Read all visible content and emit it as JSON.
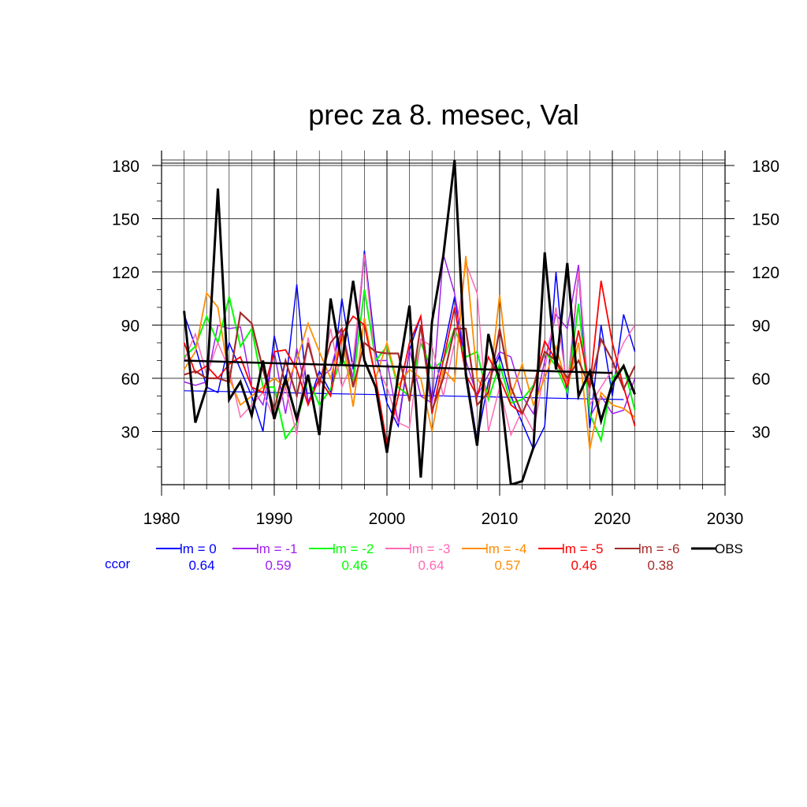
{
  "chart_data": {
    "type": "line",
    "title": "prec za 8. mesec, Val",
    "xlabel": "",
    "ylabel": "",
    "xlim": [
      1980,
      2030
    ],
    "ylim": [
      0,
      185
    ],
    "x_ticks": [
      1980,
      1990,
      2000,
      2010,
      2020,
      2030
    ],
    "x_tick_labels": [
      "1980",
      "1990",
      "2000",
      "2010",
      "2020",
      "2030"
    ],
    "y_ticks": [
      30,
      60,
      90,
      120,
      150,
      180
    ],
    "y_tick_labels": [
      "30",
      "60",
      "90",
      "120",
      "150",
      "180"
    ],
    "grid": true,
    "ccor_label": "ccor",
    "x": [
      1982,
      1983,
      1984,
      1985,
      1986,
      1987,
      1988,
      1989,
      1990,
      1991,
      1992,
      1993,
      1994,
      1995,
      1996,
      1997,
      1998,
      1999,
      2000,
      2001,
      2002,
      2003,
      2004,
      2005,
      2006,
      2007,
      2008,
      2009,
      2010,
      2011,
      2012,
      2013,
      2014,
      2015,
      2016,
      2017,
      2018,
      2019,
      2020,
      2021,
      2022
    ],
    "series": [
      {
        "name": "lm = 0",
        "color": "#0000ff",
        "ccor": "0.64",
        "width": 1.5,
        "values": [
          96,
          78,
          55,
          52,
          80,
          65,
          50,
          30,
          84,
          56,
          113,
          45,
          64,
          52,
          105,
          65,
          132,
          75,
          46,
          33,
          76,
          95,
          47,
          75,
          106,
          65,
          25,
          58,
          73,
          50,
          35,
          20,
          33,
          120,
          48,
          120,
          32,
          90,
          50,
          96,
          75
        ],
        "trend": [
          [
            1982,
            53
          ],
          [
            2021,
            48
          ]
        ]
      },
      {
        "name": "lm = -1",
        "color": "#a020f0",
        "ccor": "0.59",
        "width": 1.5,
        "values": [
          58,
          56,
          58,
          90,
          88,
          89,
          55,
          45,
          75,
          40,
          77,
          47,
          60,
          65,
          88,
          60,
          130,
          70,
          70,
          35,
          76,
          50,
          46,
          130,
          108,
          70,
          50,
          62,
          75,
          72,
          50,
          40,
          70,
          96,
          88,
          124,
          38,
          50,
          40,
          42,
          60
        ]
      },
      {
        "name": "lm = -2",
        "color": "#00ff00",
        "ccor": "0.46",
        "width": 2,
        "values": [
          72,
          78,
          95,
          80,
          106,
          78,
          88,
          55,
          55,
          26,
          35,
          60,
          45,
          54,
          72,
          58,
          110,
          70,
          78,
          55,
          50,
          80,
          65,
          70,
          88,
          72,
          75,
          48,
          68,
          46,
          48,
          56,
          75,
          67,
          52,
          102,
          40,
          25,
          60,
          67,
          42
        ]
      },
      {
        "name": "lm = -3",
        "color": "#ff69b4",
        "ccor": "0.64",
        "width": 1.5,
        "values": [
          70,
          85,
          62,
          80,
          65,
          38,
          45,
          52,
          37,
          55,
          28,
          83,
          55,
          88,
          55,
          70,
          130,
          68,
          55,
          35,
          32,
          82,
          78,
          50,
          80,
          125,
          108,
          30,
          55,
          28,
          42,
          30,
          65,
          100,
          55,
          120,
          45,
          55,
          65,
          80,
          90
        ]
      },
      {
        "name": "lm = -4",
        "color": "#ff8c00",
        "ccor": "0.57",
        "width": 1.8,
        "values": [
          65,
          75,
          108,
          100,
          60,
          45,
          50,
          55,
          60,
          55,
          70,
          91,
          75,
          60,
          85,
          44,
          94,
          60,
          80,
          56,
          65,
          60,
          30,
          65,
          58,
          129,
          60,
          50,
          107,
          50,
          68,
          45,
          60,
          78,
          55,
          80,
          20,
          52,
          45,
          43,
          38
        ]
      },
      {
        "name": "lm = -5",
        "color": "#ff0000",
        "ccor": "0.46",
        "width": 1.8,
        "values": [
          80,
          63,
          67,
          60,
          68,
          72,
          55,
          52,
          75,
          76,
          65,
          45,
          60,
          50,
          85,
          95,
          90,
          60,
          23,
          50,
          80,
          95,
          40,
          70,
          100,
          62,
          50,
          72,
          60,
          45,
          40,
          55,
          81,
          70,
          55,
          87,
          55,
          115,
          80,
          55,
          33
        ]
      },
      {
        "name": "lm = -6",
        "color": "#a52a2a",
        "ccor": "0.38",
        "width": 2.2,
        "values": [
          62,
          64,
          60,
          60,
          58,
          97,
          91,
          65,
          42,
          70,
          50,
          80,
          57,
          80,
          88,
          55,
          80,
          75,
          74,
          74,
          47,
          90,
          42,
          60,
          88,
          88,
          45,
          52,
          88,
          55,
          40,
          55,
          75,
          70,
          60,
          70,
          55,
          82,
          70,
          54,
          67
        ]
      },
      {
        "name": "OBS",
        "color": "#000000",
        "ccor": "",
        "width": 3,
        "values": [
          98,
          35,
          55,
          167,
          48,
          58,
          39,
          70,
          37,
          60,
          37,
          62,
          28,
          105,
          68,
          115,
          70,
          55,
          18,
          62,
          101,
          4,
          92,
          129,
          183,
          62,
          22,
          85,
          58,
          0,
          2,
          21,
          131,
          65,
          125,
          50,
          64,
          36,
          57,
          67,
          51
        ],
        "trend": [
          [
            1982,
            70
          ],
          [
            2020,
            63
          ]
        ]
      }
    ]
  }
}
